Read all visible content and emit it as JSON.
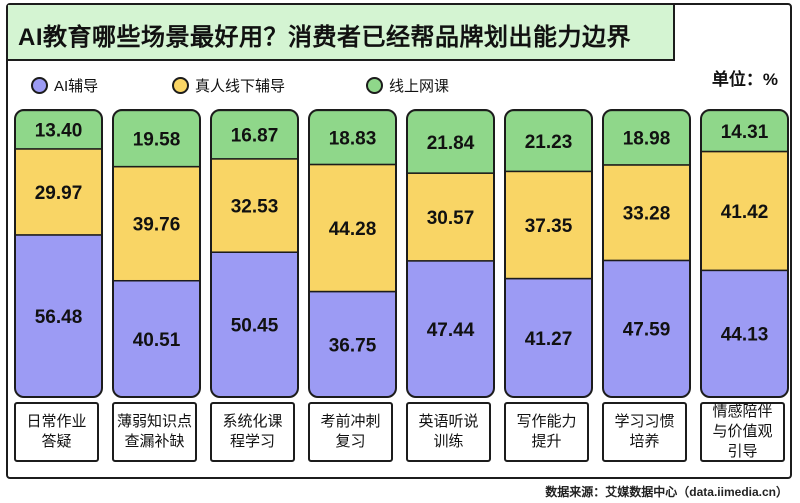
{
  "header": {
    "title": "AI教育哪些场景最好用？消费者已经帮品牌划出能力边界",
    "unit": "单位：%"
  },
  "legend": [
    {
      "label": "AI辅导",
      "color": "#9c9bf4"
    },
    {
      "label": "真人线下辅导",
      "color": "#f9d565"
    },
    {
      "label": "线上网课",
      "color": "#8fd78a"
    }
  ],
  "footer": {
    "source": "数据来源：艾媒数据中心（data.iimedia.cn）"
  },
  "chart_data": {
    "type": "bar",
    "stacked": true,
    "categories": [
      [
        "日常作业",
        "答疑"
      ],
      [
        "薄弱知识点",
        "查漏补缺"
      ],
      [
        "系统化课",
        "程学习"
      ],
      [
        "考前冲刺",
        "复习"
      ],
      [
        "英语听说",
        "训练"
      ],
      [
        "写作能力",
        "提升"
      ],
      [
        "学习习惯",
        "培养"
      ],
      [
        "情感陪伴",
        "与价值观",
        "引导"
      ]
    ],
    "series": [
      {
        "name": "AI辅导",
        "color": "#9c9bf4",
        "values": [
          "56.48",
          "40.51",
          "50.45",
          "36.75",
          "47.44",
          "41.27",
          "47.59",
          "44.13"
        ]
      },
      {
        "name": "真人线下辅导",
        "color": "#f9d565",
        "values": [
          "29.97",
          "39.76",
          "32.53",
          "44.28",
          "30.57",
          "37.35",
          "33.28",
          "41.42"
        ]
      },
      {
        "name": "线上网课",
        "color": "#8fd78a",
        "values": [
          "13.40",
          "19.58",
          "16.87",
          "18.83",
          "21.84",
          "21.23",
          "18.98",
          "14.31"
        ]
      }
    ],
    "ylim": [
      0,
      100
    ],
    "legend_position": "top-left"
  }
}
